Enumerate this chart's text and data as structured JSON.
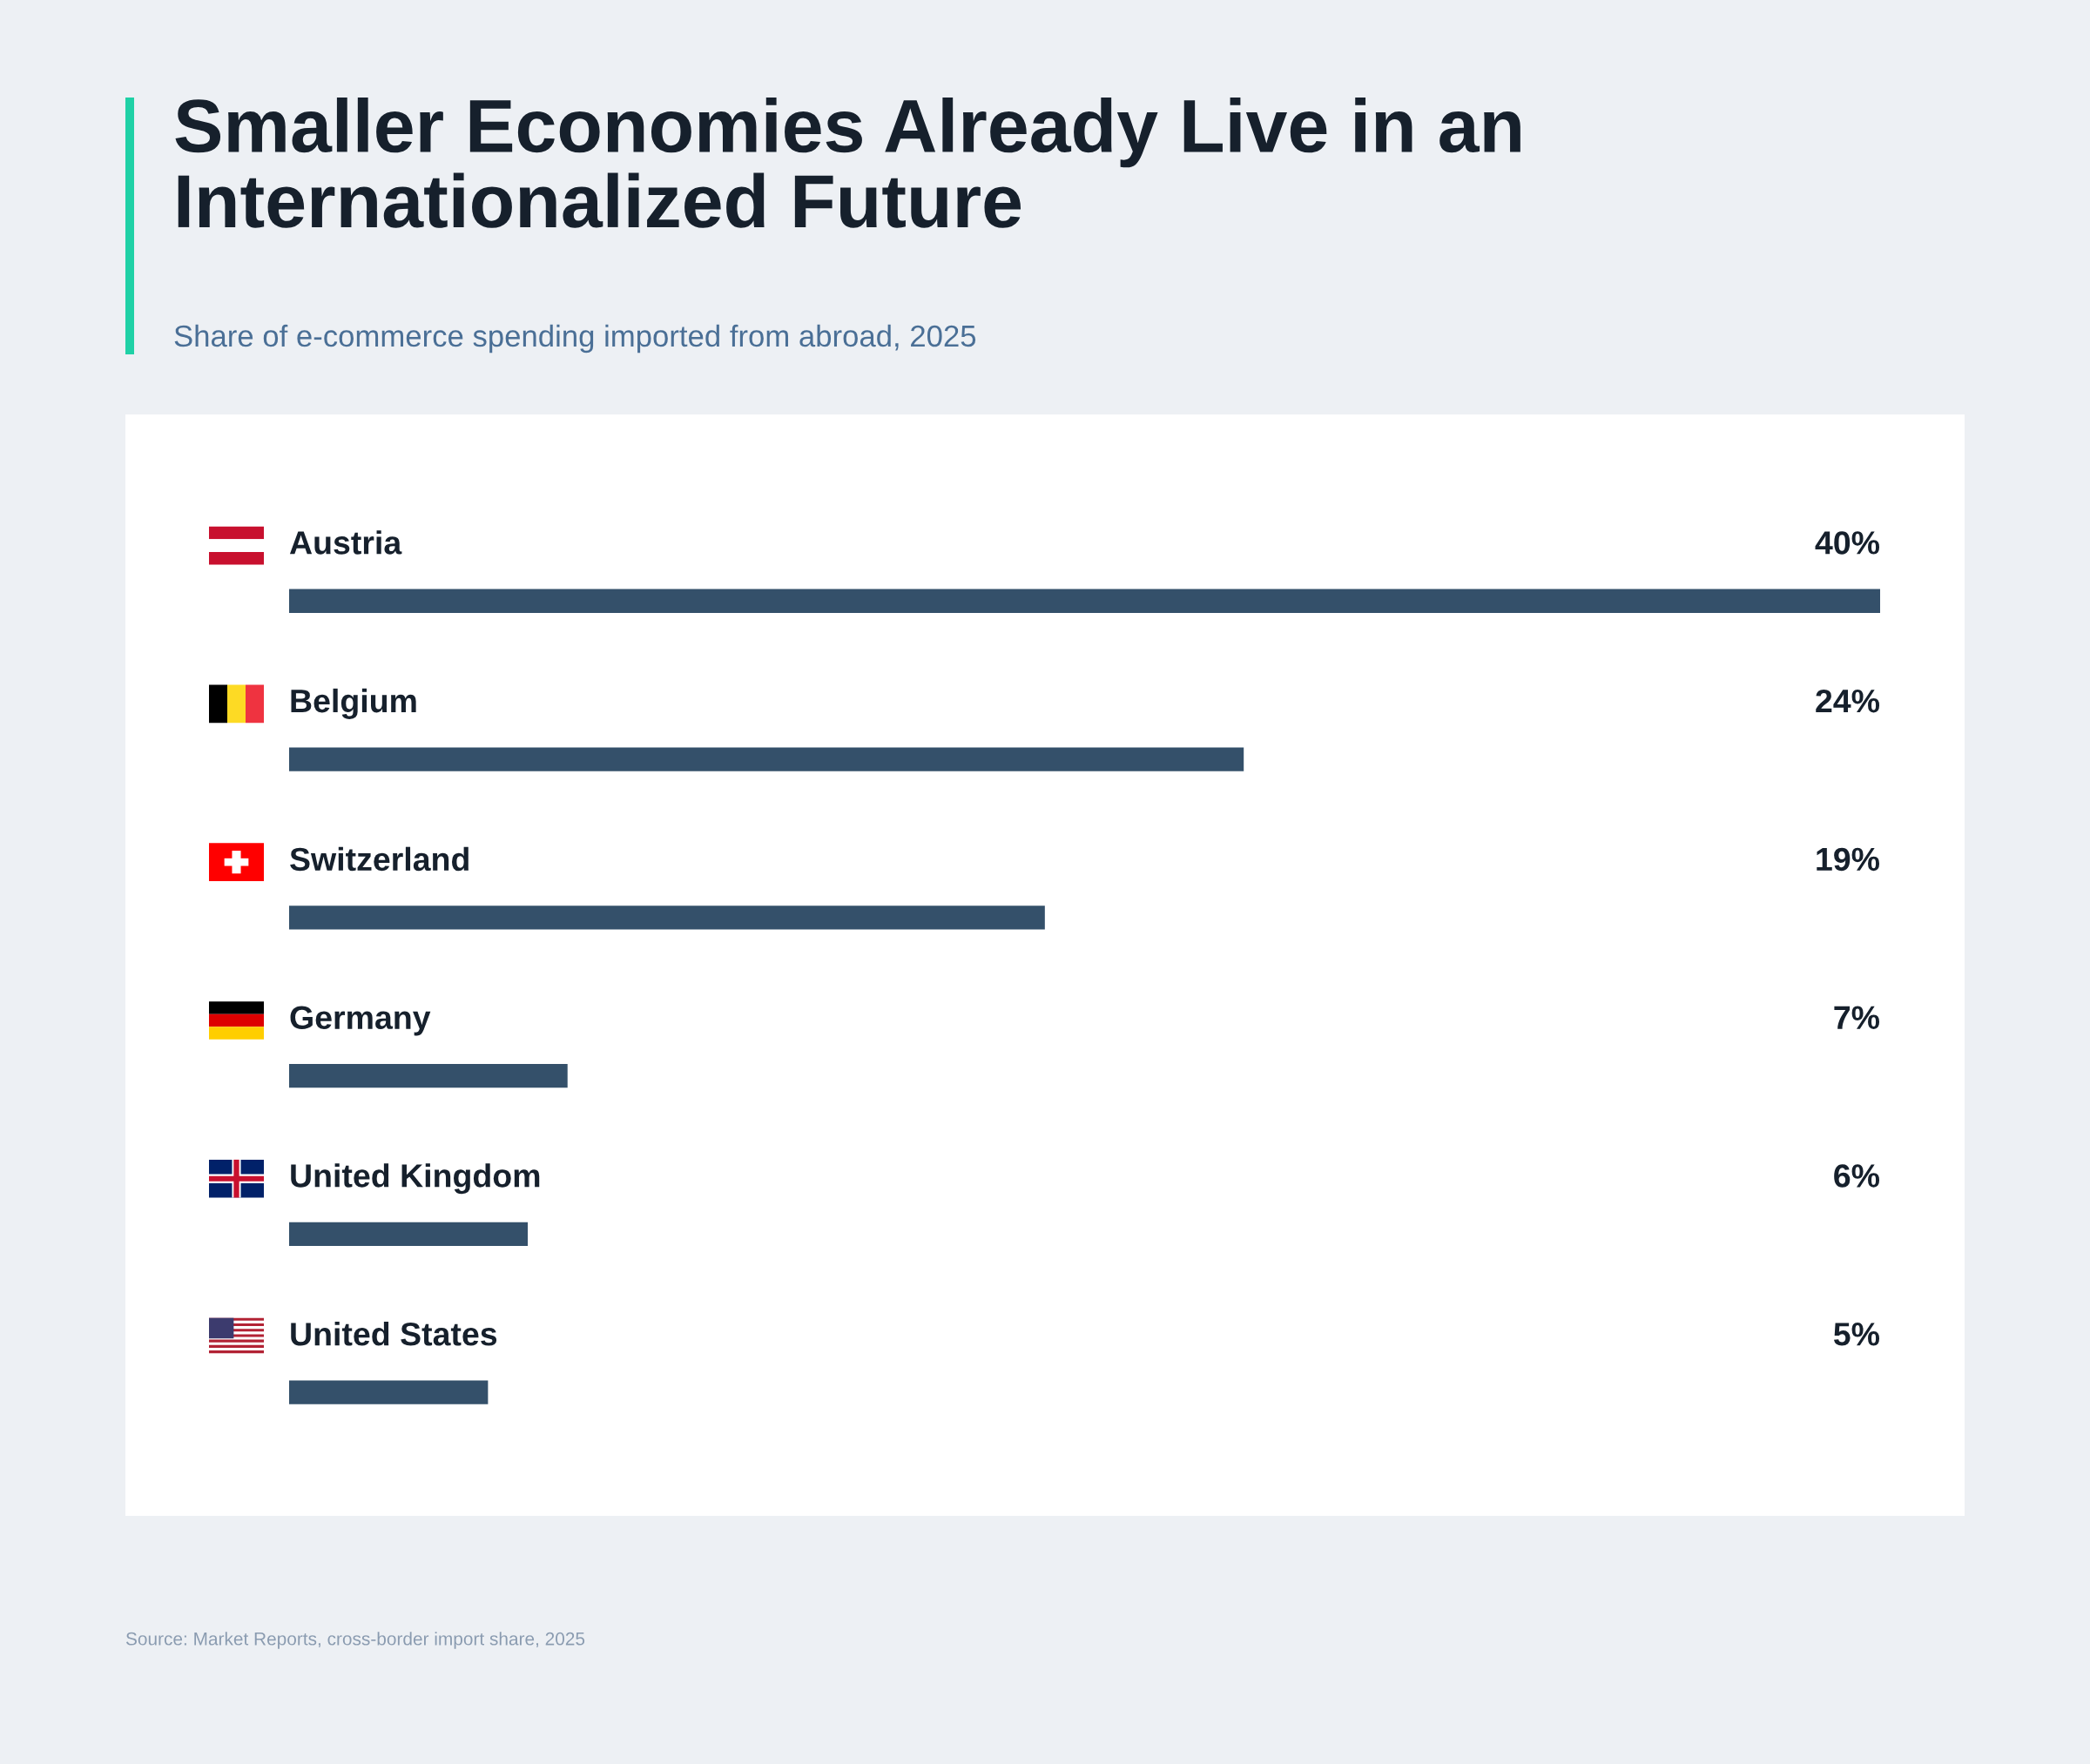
{
  "chart_data": {
    "type": "bar",
    "orientation": "horizontal",
    "title": "Smaller Economies Already Live in an Internationalized Future",
    "subtitle": "Share of e-commerce spending imported from abroad, 2025",
    "categories": [
      "Austria",
      "Belgium",
      "Switzerland",
      "Germany",
      "United Kingdom",
      "United States"
    ],
    "values": [
      40,
      24,
      19,
      7,
      6,
      5
    ],
    "value_labels": [
      "40%",
      "24%",
      "19%",
      "7%",
      "6%",
      "5%"
    ],
    "color": "#34506a",
    "xlim": [
      0,
      40
    ],
    "annotations": [
      "Source: Market Reports, cross-border import share, 2025"
    ]
  }
}
